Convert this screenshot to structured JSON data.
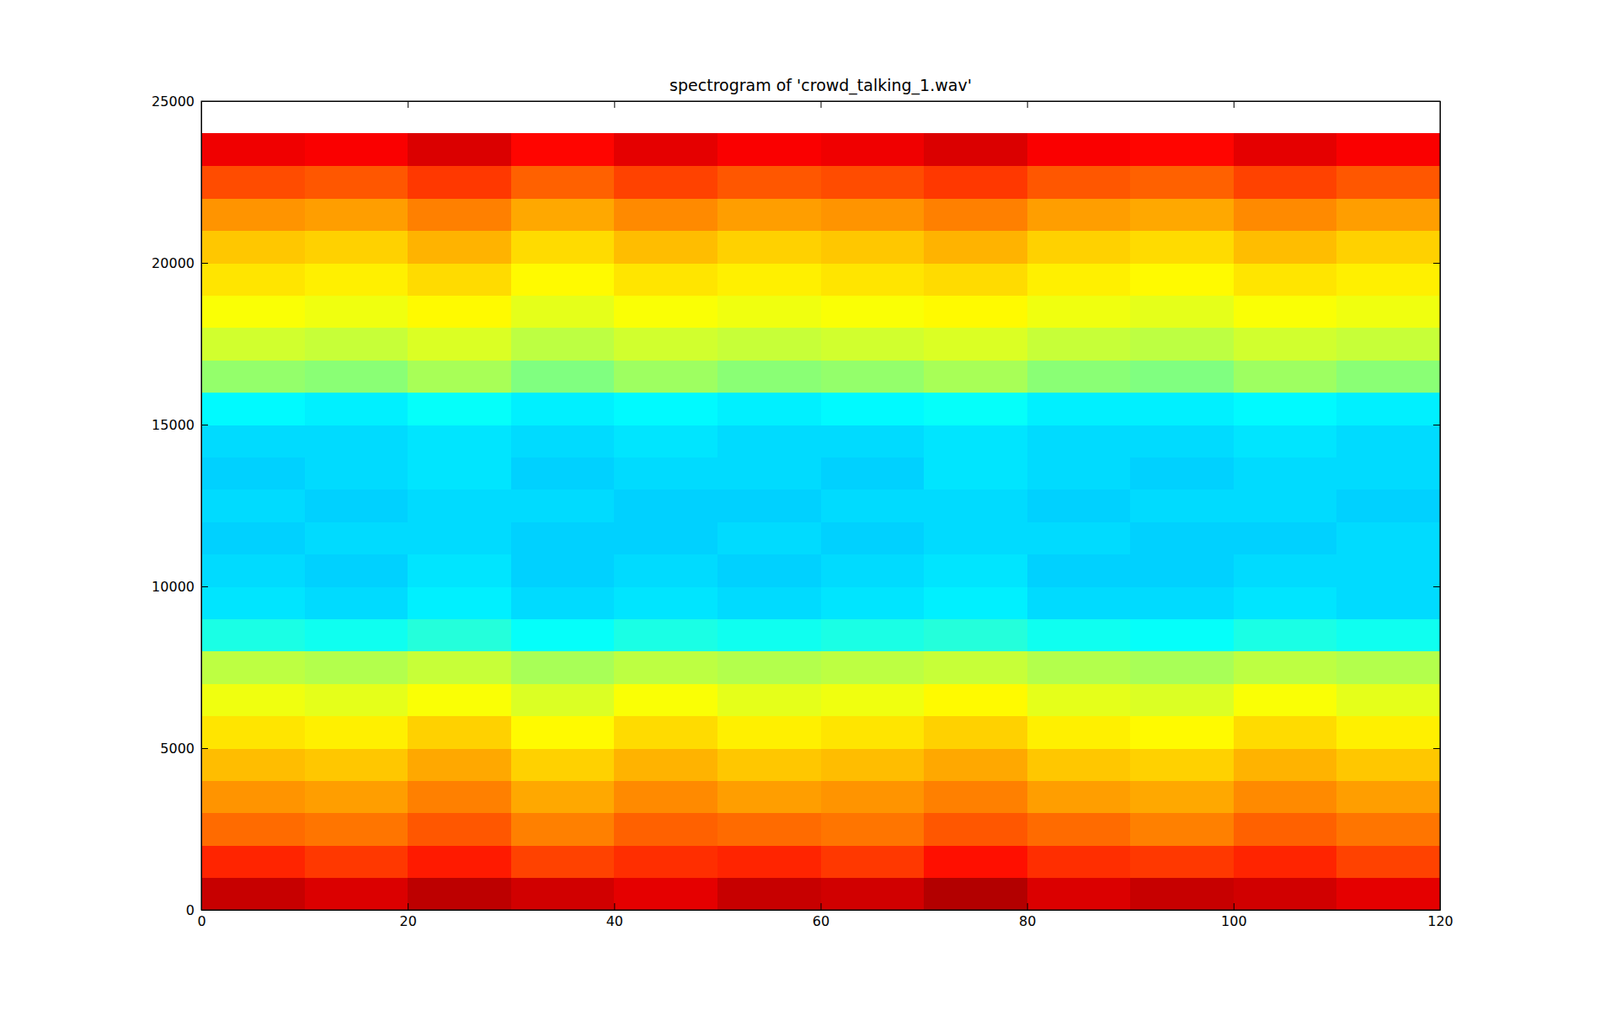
{
  "chart_data": {
    "type": "heatmap",
    "title": "spectrogram of 'crowd_talking_1.wav'",
    "xlim": [
      0,
      120
    ],
    "xticks": [
      0,
      20,
      40,
      60,
      80,
      100,
      120
    ],
    "ylim": [
      0,
      25000
    ],
    "yticks": [
      0,
      5000,
      10000,
      15000,
      20000,
      25000
    ],
    "zlim": [
      0,
      1
    ],
    "x_bins": [
      0,
      10,
      20,
      30,
      40,
      50,
      60,
      70,
      80,
      90,
      100,
      110,
      120
    ],
    "y_bins": [
      0,
      1000,
      2000,
      3000,
      4000,
      5000,
      6000,
      7000,
      8000,
      9000,
      10000,
      11000,
      12000,
      13000,
      14000,
      15000,
      16000,
      17000,
      18000,
      19000,
      20000,
      21000,
      22000,
      23000,
      24000
    ],
    "values": [
      [
        0.93,
        0.91,
        0.94,
        0.92,
        0.9,
        0.93,
        0.92,
        0.95,
        0.91,
        0.93,
        0.92,
        0.9
      ],
      [
        0.84,
        0.82,
        0.85,
        0.81,
        0.83,
        0.84,
        0.82,
        0.86,
        0.83,
        0.82,
        0.84,
        0.81
      ],
      [
        0.77,
        0.76,
        0.79,
        0.75,
        0.78,
        0.77,
        0.76,
        0.79,
        0.77,
        0.75,
        0.78,
        0.76
      ],
      [
        0.73,
        0.72,
        0.75,
        0.71,
        0.74,
        0.72,
        0.73,
        0.75,
        0.72,
        0.71,
        0.74,
        0.72
      ],
      [
        0.69,
        0.68,
        0.71,
        0.67,
        0.7,
        0.68,
        0.69,
        0.71,
        0.68,
        0.67,
        0.7,
        0.68
      ],
      [
        0.65,
        0.64,
        0.67,
        0.63,
        0.66,
        0.64,
        0.65,
        0.67,
        0.64,
        0.63,
        0.66,
        0.64
      ],
      [
        0.61,
        0.6,
        0.62,
        0.59,
        0.62,
        0.6,
        0.61,
        0.63,
        0.6,
        0.59,
        0.62,
        0.6
      ],
      [
        0.56,
        0.55,
        0.57,
        0.54,
        0.56,
        0.55,
        0.56,
        0.57,
        0.55,
        0.54,
        0.56,
        0.55
      ],
      [
        0.4,
        0.39,
        0.41,
        0.38,
        0.4,
        0.39,
        0.4,
        0.41,
        0.39,
        0.38,
        0.4,
        0.39
      ],
      [
        0.35,
        0.34,
        0.36,
        0.34,
        0.35,
        0.34,
        0.35,
        0.36,
        0.34,
        0.34,
        0.35,
        0.34
      ],
      [
        0.34,
        0.33,
        0.35,
        0.33,
        0.34,
        0.33,
        0.34,
        0.35,
        0.33,
        0.33,
        0.34,
        0.34
      ],
      [
        0.33,
        0.34,
        0.34,
        0.33,
        0.33,
        0.34,
        0.33,
        0.34,
        0.34,
        0.33,
        0.33,
        0.34
      ],
      [
        0.34,
        0.33,
        0.34,
        0.34,
        0.33,
        0.33,
        0.34,
        0.34,
        0.33,
        0.34,
        0.34,
        0.33
      ],
      [
        0.33,
        0.34,
        0.35,
        0.33,
        0.34,
        0.34,
        0.33,
        0.35,
        0.34,
        0.33,
        0.34,
        0.34
      ],
      [
        0.34,
        0.34,
        0.35,
        0.34,
        0.35,
        0.34,
        0.34,
        0.35,
        0.34,
        0.34,
        0.35,
        0.34
      ],
      [
        0.37,
        0.36,
        0.38,
        0.36,
        0.37,
        0.36,
        0.37,
        0.38,
        0.36,
        0.36,
        0.37,
        0.36
      ],
      [
        0.52,
        0.51,
        0.54,
        0.5,
        0.53,
        0.51,
        0.52,
        0.54,
        0.51,
        0.5,
        0.53,
        0.51
      ],
      [
        0.58,
        0.57,
        0.59,
        0.56,
        0.58,
        0.57,
        0.58,
        0.59,
        0.57,
        0.56,
        0.58,
        0.57
      ],
      [
        0.62,
        0.61,
        0.63,
        0.6,
        0.62,
        0.61,
        0.62,
        0.63,
        0.61,
        0.6,
        0.62,
        0.61
      ],
      [
        0.65,
        0.64,
        0.66,
        0.63,
        0.65,
        0.64,
        0.65,
        0.66,
        0.64,
        0.63,
        0.65,
        0.64
      ],
      [
        0.68,
        0.67,
        0.7,
        0.66,
        0.69,
        0.67,
        0.68,
        0.7,
        0.67,
        0.66,
        0.69,
        0.67
      ],
      [
        0.73,
        0.72,
        0.75,
        0.71,
        0.74,
        0.72,
        0.73,
        0.75,
        0.72,
        0.71,
        0.74,
        0.72
      ],
      [
        0.8,
        0.79,
        0.82,
        0.78,
        0.81,
        0.79,
        0.8,
        0.82,
        0.79,
        0.78,
        0.81,
        0.79
      ],
      [
        0.89,
        0.88,
        0.91,
        0.87,
        0.9,
        0.88,
        0.89,
        0.91,
        0.88,
        0.87,
        0.9,
        0.88
      ]
    ]
  }
}
